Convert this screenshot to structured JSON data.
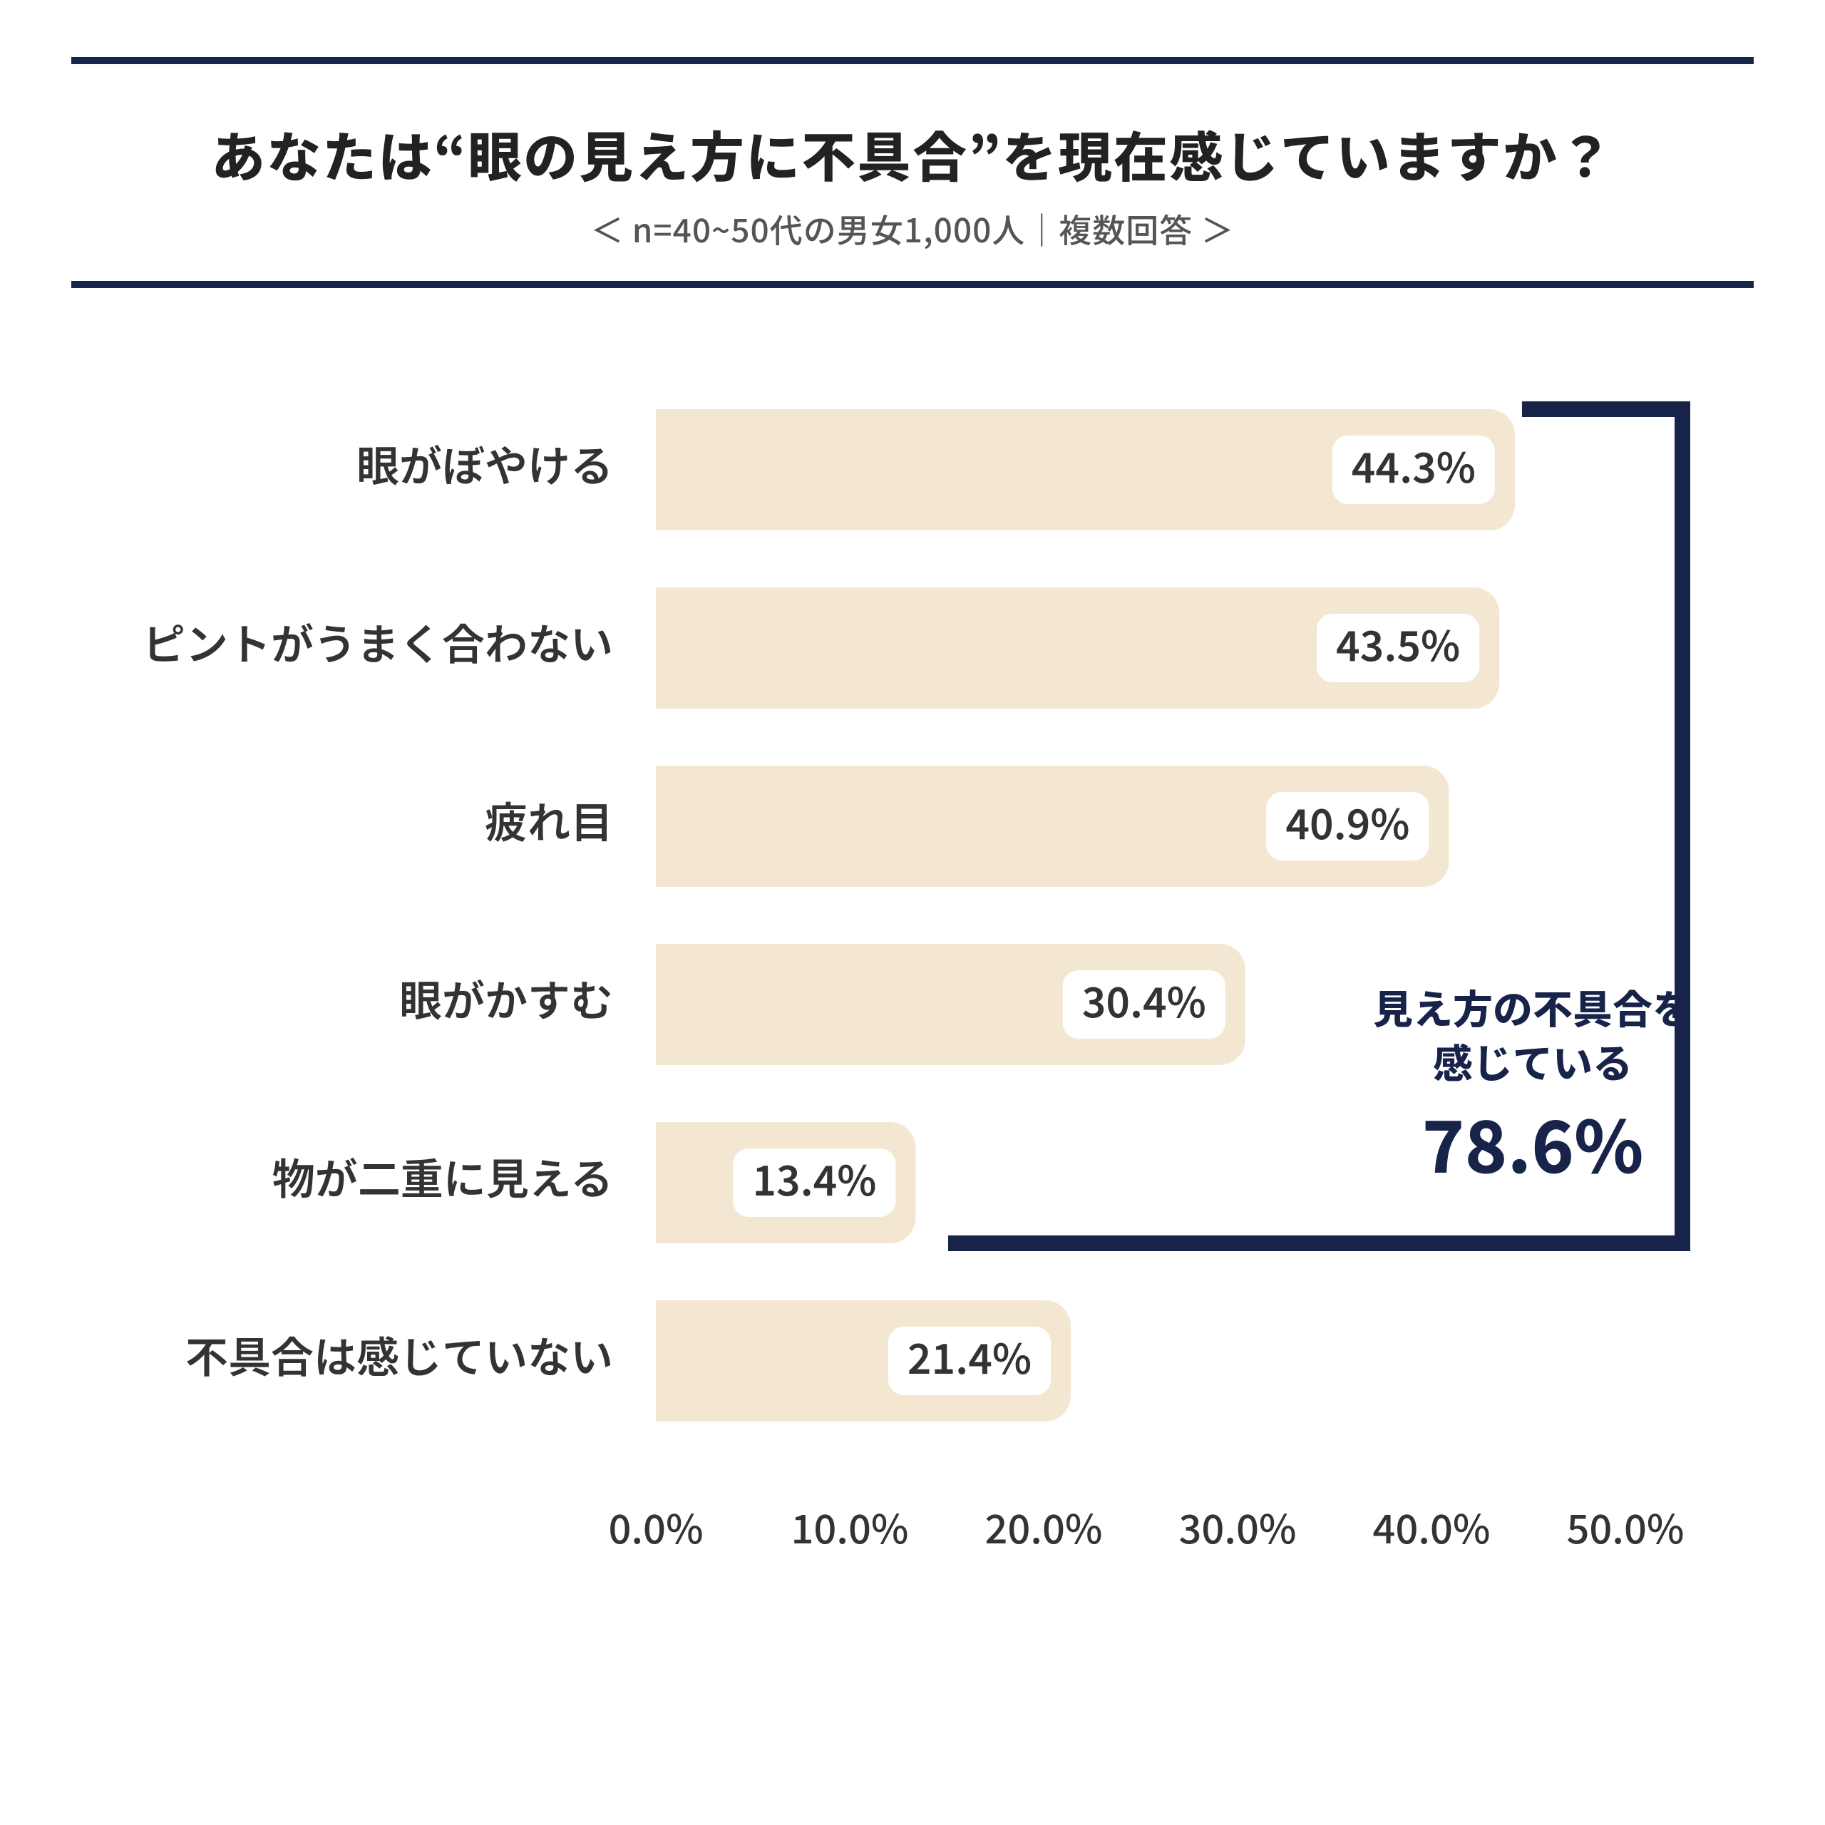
{
  "header": {
    "title": "あなたは“眼の見え方に不具合”を現在感じていますか？",
    "subtitle": "＜ n=40~50代の男女1,000人｜複数回答 ＞"
  },
  "chart": {
    "type": "bar-horizontal",
    "xmin": 0.0,
    "xmax": 50.0,
    "xtick_step": 10.0,
    "xtick_format_suffix": "%",
    "bar_color": "#f3e7d1",
    "bar_border_radius": 36,
    "value_badge_bg": "#ffffff",
    "value_badge_text": "#333333",
    "label_color": "#333333",
    "tick_color": "#333333",
    "rule_color": "#18234a",
    "bracket_color": "#18234a",
    "label_fontsize": 60,
    "value_fontsize": 58,
    "tick_fontsize": 56,
    "background_color": "#ffffff",
    "items": [
      {
        "label": "眼がぼやける",
        "value": 44.3,
        "display": "44.3%",
        "in_bracket": true
      },
      {
        "label": "ピントがうまく合わない",
        "value": 43.5,
        "display": "43.5%",
        "in_bracket": true
      },
      {
        "label": "疲れ目",
        "value": 40.9,
        "display": "40.9%",
        "in_bracket": true
      },
      {
        "label": "眼がかすむ",
        "value": 30.4,
        "display": "30.4%",
        "in_bracket": true
      },
      {
        "label": "物が二重に見える",
        "value": 13.4,
        "display": "13.4%",
        "in_bracket": true
      },
      {
        "label": "不具合は感じていない",
        "value": 21.4,
        "display": "21.4%",
        "in_bracket": false
      }
    ]
  },
  "callout": {
    "lead1": "見え方の不具合を",
    "lead2": "感じている",
    "value": "78.6%",
    "color": "#18234a"
  }
}
